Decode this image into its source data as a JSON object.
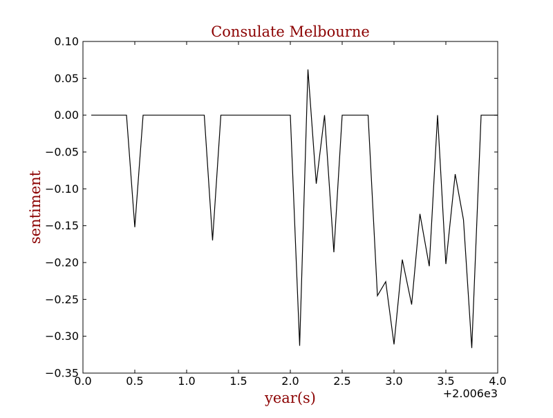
{
  "chart_data": {
    "type": "line",
    "title": "Consulate Melbourne",
    "xlabel": "year(s)",
    "ylabel": "sentiment",
    "x_offset_label": "+2.006e3",
    "xlim": [
      0.0,
      4.0
    ],
    "ylim": [
      -0.35,
      0.1
    ],
    "x_ticks": [
      "0.0",
      "0.5",
      "1.0",
      "1.5",
      "2.0",
      "2.5",
      "3.0",
      "3.5",
      "4.0"
    ],
    "y_ticks": [
      "0.10",
      "0.05",
      "0.00",
      "−0.05",
      "−0.10",
      "−0.15",
      "−0.20",
      "−0.25",
      "−0.30",
      "−0.35"
    ],
    "grid": false,
    "colors": {
      "line": "#000000",
      "title": "#8b0000",
      "axis_label": "#8b0000"
    },
    "series": [
      {
        "x": [
          0.08,
          0.42,
          0.5,
          0.58,
          1.17,
          1.25,
          1.33,
          2.0,
          2.09,
          2.17,
          2.25,
          2.33,
          2.42,
          2.5,
          2.75,
          2.84,
          2.92,
          3.0,
          3.08,
          3.17,
          3.25,
          3.34,
          3.42,
          3.5,
          3.59,
          3.67,
          3.75,
          3.84,
          4.0
        ],
        "values": [
          0.0,
          0.0,
          -0.152,
          0.0,
          0.0,
          -0.17,
          0.0,
          0.0,
          -0.313,
          0.062,
          -0.093,
          0.0,
          -0.186,
          0.0,
          0.0,
          -0.245,
          -0.226,
          -0.311,
          -0.196,
          -0.257,
          -0.134,
          -0.205,
          0.0,
          -0.202,
          -0.08,
          -0.142,
          -0.316,
          0.0,
          0.0
        ]
      }
    ]
  }
}
